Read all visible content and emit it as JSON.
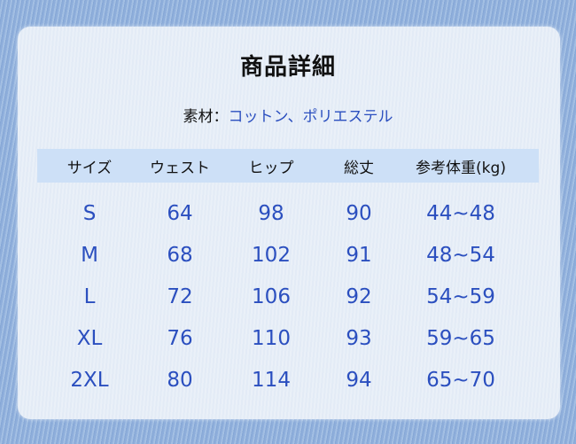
{
  "title": "商品詳細",
  "material": {
    "label": "素材：",
    "value": "コットン、ポリエステル"
  },
  "table": {
    "headers": [
      "サイズ",
      "ウェスト",
      "ヒップ",
      "総丈",
      "参考体重(kg)"
    ],
    "rows": [
      [
        "S",
        "64",
        "98",
        "90",
        "44~48"
      ],
      [
        "M",
        "68",
        "102",
        "91",
        "48~54"
      ],
      [
        "L",
        "72",
        "106",
        "92",
        "54~59"
      ],
      [
        "XL",
        "76",
        "110",
        "93",
        "59~65"
      ],
      [
        "2XL",
        "80",
        "114",
        "94",
        "65~70"
      ]
    ]
  },
  "colors": {
    "accent_text": "#2b4fbf",
    "header_band": "#cde0f7",
    "background": "#8eaedb"
  }
}
